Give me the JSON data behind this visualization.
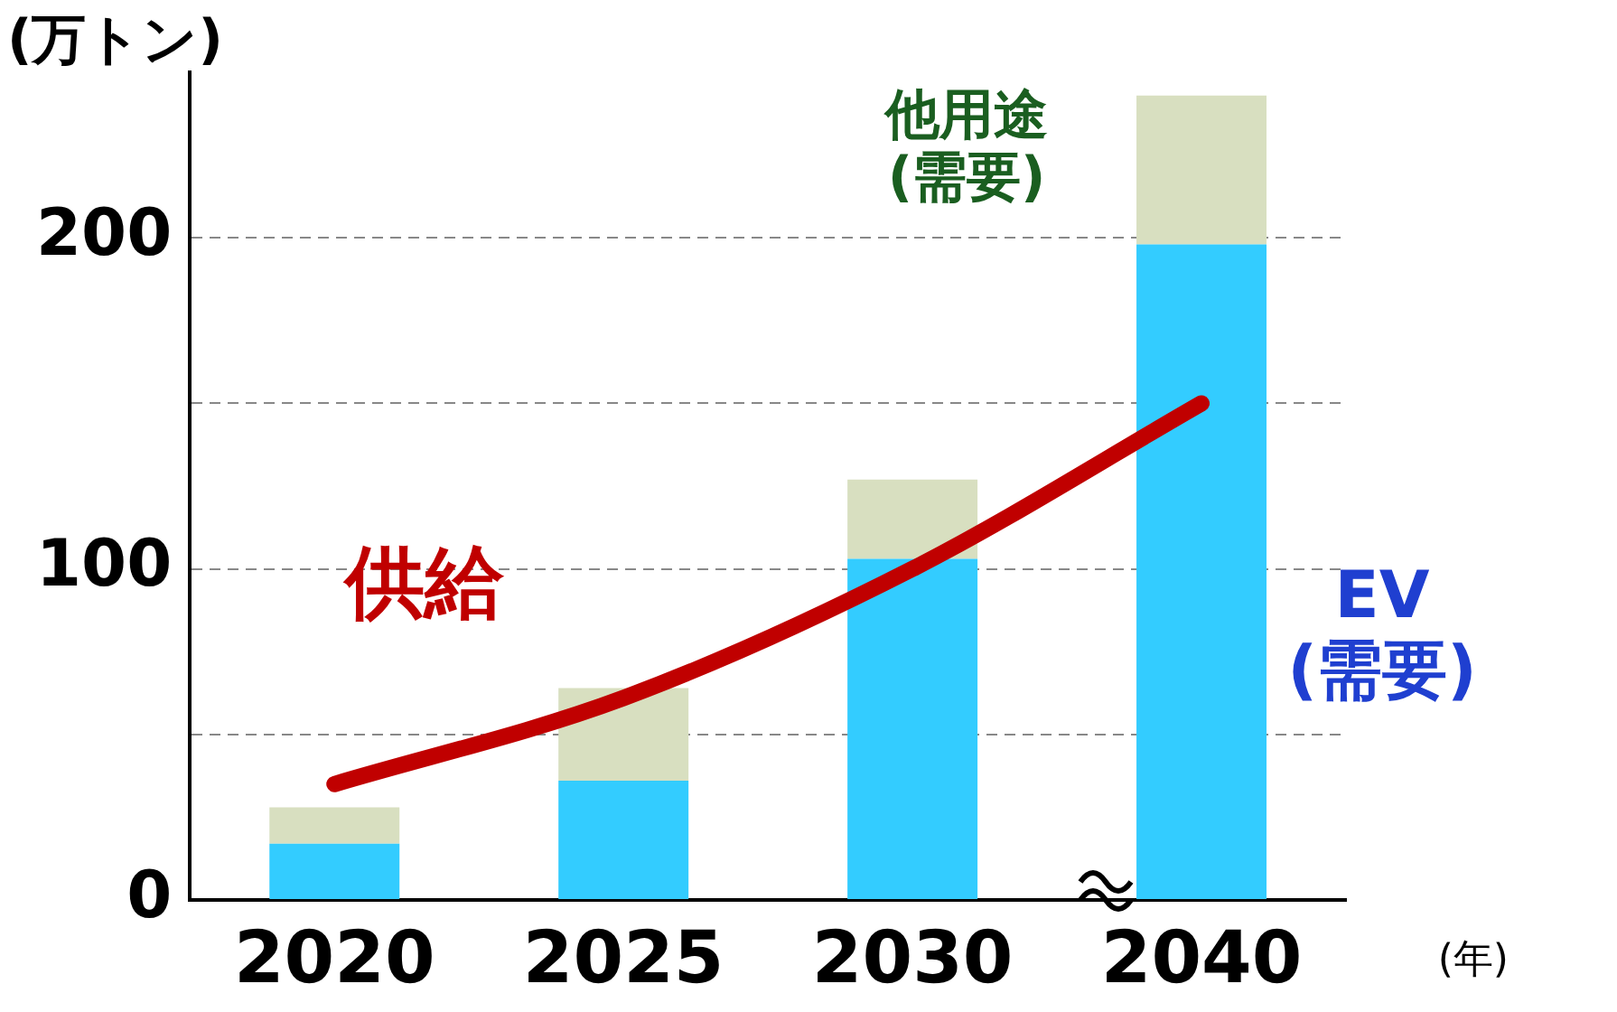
{
  "chart_data": {
    "type": "bar",
    "stacked": true,
    "ylabel": "(万トン)",
    "xlabel": "(年)",
    "categories": [
      "2020",
      "2025",
      "2030",
      "2040"
    ],
    "series": [
      {
        "name": "EV (需要)",
        "color": "#33ccff",
        "values": [
          17,
          36,
          103,
          198
        ]
      },
      {
        "name": "他用途 (需要)",
        "color": "#d8dfc0",
        "values": [
          11,
          28,
          24,
          45
        ]
      },
      {
        "name": "供給",
        "type": "line",
        "color": "#c00000",
        "values": [
          35,
          61,
          100,
          150
        ]
      }
    ],
    "ylim": [
      0,
      250
    ],
    "yticks": [
      0,
      {
        "value": 50,
        "label": null
      },
      100,
      {
        "value": 150,
        "label": null
      },
      200
    ],
    "grid": "y",
    "legend": false,
    "marker": "none",
    "line_style": "solid"
  }
}
